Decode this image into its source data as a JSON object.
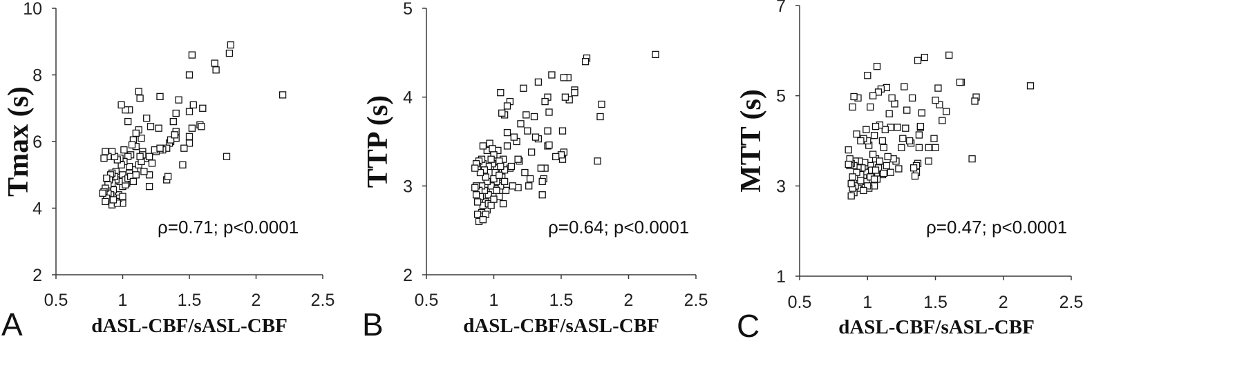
{
  "colors": {
    "background": "#ffffff",
    "marker_stroke": "#111111",
    "axis": "#3a3a3a"
  },
  "chart_data": [
    {
      "type": "scatter",
      "panel_label": "A",
      "xlabel": "dASL-CBF/sASL-CBF",
      "ylabel": "Tmax (s)",
      "xlim": [
        0.5,
        2.5
      ],
      "ylim": [
        2,
        10
      ],
      "xticks": [
        "0.5",
        "1",
        "1.5",
        "2",
        "2.5"
      ],
      "yticks": [
        "2",
        "4",
        "6",
        "8",
        "10"
      ],
      "annotation": "ρ=0.71; p<0.0001",
      "grid": false,
      "points": [
        [
          1.81,
          8.9
        ],
        [
          1.8,
          8.65
        ],
        [
          1.69,
          8.35
        ],
        [
          1.7,
          8.15
        ],
        [
          1.52,
          8.6
        ],
        [
          1.5,
          8.0
        ],
        [
          2.2,
          7.4
        ],
        [
          1.78,
          5.55
        ],
        [
          1.53,
          7.1
        ],
        [
          1.6,
          7.0
        ],
        [
          1.58,
          6.5
        ],
        [
          1.59,
          6.45
        ],
        [
          1.5,
          6.9
        ],
        [
          1.5,
          6.15
        ],
        [
          1.5,
          5.95
        ],
        [
          1.45,
          5.3
        ],
        [
          1.42,
          7.25
        ],
        [
          1.4,
          6.85
        ],
        [
          1.38,
          6.6
        ],
        [
          1.4,
          6.3
        ],
        [
          1.4,
          6.1
        ],
        [
          1.36,
          6.0
        ],
        [
          1.35,
          5.95
        ],
        [
          1.33,
          5.8
        ],
        [
          1.33,
          4.85
        ],
        [
          1.34,
          4.95
        ],
        [
          1.3,
          5.75
        ],
        [
          1.28,
          7.35
        ],
        [
          1.27,
          6.4
        ],
        [
          1.28,
          5.75
        ],
        [
          1.25,
          5.7
        ],
        [
          1.22,
          5.35
        ],
        [
          1.21,
          6.45
        ],
        [
          1.2,
          5.0
        ],
        [
          1.2,
          4.65
        ],
        [
          1.18,
          6.7
        ],
        [
          1.17,
          5.5
        ],
        [
          1.15,
          5.7
        ],
        [
          1.15,
          5.6
        ],
        [
          1.14,
          6.1
        ],
        [
          1.13,
          7.3
        ],
        [
          1.12,
          7.5
        ],
        [
          1.12,
          6.35
        ],
        [
          1.1,
          6.25
        ],
        [
          1.1,
          5.85
        ],
        [
          1.09,
          5.15
        ],
        [
          1.08,
          6.05
        ],
        [
          1.07,
          5.9
        ],
        [
          1.06,
          5.6
        ],
        [
          1.05,
          5.25
        ],
        [
          1.05,
          5.05
        ],
        [
          1.05,
          6.95
        ],
        [
          1.04,
          6.6
        ],
        [
          1.04,
          5.55
        ],
        [
          1.03,
          4.85
        ],
        [
          1.03,
          4.75
        ],
        [
          1.02,
          6.95
        ],
        [
          1.01,
          5.75
        ],
        [
          1.01,
          5.4
        ],
        [
          1.0,
          5.0
        ],
        [
          1.0,
          4.8
        ],
        [
          1.0,
          4.65
        ],
        [
          1.0,
          4.15
        ],
        [
          0.99,
          7.1
        ],
        [
          0.99,
          5.3
        ],
        [
          0.98,
          5.5
        ],
        [
          0.98,
          4.8
        ],
        [
          0.97,
          4.4
        ],
        [
          0.97,
          4.3
        ],
        [
          0.96,
          5.45
        ],
        [
          0.95,
          5.1
        ],
        [
          0.95,
          4.85
        ],
        [
          0.95,
          4.2
        ],
        [
          0.94,
          5.55
        ],
        [
          0.94,
          4.95
        ],
        [
          0.93,
          4.55
        ],
        [
          0.93,
          4.3
        ],
        [
          0.92,
          5.7
        ],
        [
          0.92,
          5.05
        ],
        [
          0.92,
          4.75
        ],
        [
          0.92,
          4.1
        ],
        [
          0.91,
          5.0
        ],
        [
          0.91,
          4.4
        ],
        [
          0.9,
          4.85
        ],
        [
          0.9,
          4.25
        ],
        [
          0.89,
          5.55
        ],
        [
          0.89,
          4.7
        ],
        [
          0.89,
          4.45
        ],
        [
          0.88,
          4.9
        ],
        [
          0.88,
          4.3
        ],
        [
          0.87,
          5.7
        ],
        [
          0.87,
          4.6
        ],
        [
          0.87,
          4.2
        ],
        [
          0.86,
          5.5
        ],
        [
          0.86,
          4.5
        ],
        [
          0.85,
          4.45
        ],
        [
          1.02,
          4.7
        ],
        [
          1.02,
          4.85
        ],
        [
          1.04,
          4.9
        ],
        [
          1.06,
          4.95
        ],
        [
          1.1,
          5.0
        ],
        [
          1.12,
          5.3
        ],
        [
          1.14,
          5.4
        ],
        [
          1.16,
          5.1
        ],
        [
          1.08,
          4.8
        ],
        [
          1.0,
          4.35
        ],
        [
          0.96,
          4.15
        ],
        [
          0.93,
          4.25
        ],
        [
          1.2,
          5.55
        ],
        [
          1.24,
          5.75
        ],
        [
          1.13,
          5.55
        ],
        [
          1.28,
          5.8
        ],
        [
          1.36,
          6.05
        ],
        [
          1.39,
          6.2
        ],
        [
          1.46,
          5.8
        ],
        [
          1.52,
          6.4
        ]
      ]
    },
    {
      "type": "scatter",
      "panel_label": "B",
      "xlabel": "dASL-CBF/sASL-CBF",
      "ylabel": "TTP (s)",
      "xlim": [
        0.5,
        2.5
      ],
      "ylim": [
        2,
        5
      ],
      "xticks": [
        "0.5",
        "1",
        "1.5",
        "2",
        "2.5"
      ],
      "yticks": [
        "2",
        "3",
        "4",
        "5"
      ],
      "annotation": "ρ=0.64; p<0.0001",
      "grid": false,
      "points": [
        [
          2.2,
          4.48
        ],
        [
          1.69,
          4.44
        ],
        [
          1.68,
          4.4
        ],
        [
          1.8,
          3.92
        ],
        [
          1.79,
          3.78
        ],
        [
          1.77,
          3.28
        ],
        [
          1.6,
          4.08
        ],
        [
          1.6,
          4.05
        ],
        [
          1.55,
          4.22
        ],
        [
          1.52,
          4.22
        ],
        [
          1.56,
          3.97
        ],
        [
          1.53,
          4.0
        ],
        [
          1.51,
          3.62
        ],
        [
          1.52,
          3.38
        ],
        [
          1.51,
          3.3
        ],
        [
          1.5,
          3.35
        ],
        [
          1.46,
          3.33
        ],
        [
          1.43,
          4.25
        ],
        [
          1.41,
          3.83
        ],
        [
          1.4,
          4.0
        ],
        [
          1.38,
          3.95
        ],
        [
          1.4,
          3.62
        ],
        [
          1.4,
          3.45
        ],
        [
          1.41,
          3.46
        ],
        [
          1.38,
          3.2
        ],
        [
          1.37,
          3.08
        ],
        [
          1.36,
          3.05
        ],
        [
          1.36,
          2.9
        ],
        [
          1.35,
          3.2
        ],
        [
          1.33,
          3.53
        ],
        [
          1.33,
          4.17
        ],
        [
          1.31,
          3.55
        ],
        [
          1.3,
          3.78
        ],
        [
          1.28,
          3.38
        ],
        [
          1.27,
          3.08
        ],
        [
          1.26,
          3.0
        ],
        [
          1.25,
          3.62
        ],
        [
          1.24,
          3.8
        ],
        [
          1.23,
          3.15
        ],
        [
          1.22,
          4.1
        ],
        [
          1.2,
          3.7
        ],
        [
          1.19,
          3.28
        ],
        [
          1.18,
          3.3
        ],
        [
          1.18,
          2.98
        ],
        [
          1.17,
          3.5
        ],
        [
          1.15,
          3.55
        ],
        [
          1.14,
          3.0
        ],
        [
          1.12,
          3.95
        ],
        [
          1.12,
          3.2
        ],
        [
          1.1,
          3.9
        ],
        [
          1.1,
          3.6
        ],
        [
          1.1,
          3.45
        ],
        [
          1.09,
          2.95
        ],
        [
          1.08,
          3.8
        ],
        [
          1.08,
          3.18
        ],
        [
          1.07,
          3.3
        ],
        [
          1.07,
          2.8
        ],
        [
          1.06,
          3.82
        ],
        [
          1.06,
          3.1
        ],
        [
          1.05,
          4.05
        ],
        [
          1.05,
          3.0
        ],
        [
          1.04,
          3.28
        ],
        [
          1.04,
          2.88
        ],
        [
          1.03,
          3.4
        ],
        [
          1.02,
          3.2
        ],
        [
          1.02,
          3.05
        ],
        [
          1.01,
          3.15
        ],
        [
          1.01,
          2.97
        ],
        [
          1.0,
          3.35
        ],
        [
          1.0,
          3.08
        ],
        [
          0.99,
          3.25
        ],
        [
          0.99,
          2.95
        ],
        [
          0.98,
          3.3
        ],
        [
          0.98,
          3.0
        ],
        [
          0.97,
          2.85
        ],
        [
          0.96,
          3.22
        ],
        [
          0.96,
          2.9
        ],
        [
          0.95,
          3.4
        ],
        [
          0.95,
          3.05
        ],
        [
          0.95,
          2.73
        ],
        [
          0.94,
          3.1
        ],
        [
          0.94,
          2.82
        ],
        [
          0.93,
          3.18
        ],
        [
          0.93,
          2.95
        ],
        [
          0.92,
          3.45
        ],
        [
          0.92,
          3.25
        ],
        [
          0.92,
          2.78
        ],
        [
          0.91,
          3.3
        ],
        [
          0.91,
          3.0
        ],
        [
          0.91,
          2.7
        ],
        [
          0.9,
          3.15
        ],
        [
          0.9,
          2.88
        ],
        [
          0.9,
          2.66
        ],
        [
          0.89,
          3.28
        ],
        [
          0.89,
          2.95
        ],
        [
          0.89,
          2.6
        ],
        [
          0.88,
          3.22
        ],
        [
          0.88,
          2.82
        ],
        [
          0.88,
          2.68
        ],
        [
          0.87,
          3.25
        ],
        [
          0.87,
          3.0
        ],
        [
          0.87,
          2.9
        ],
        [
          0.86,
          3.2
        ],
        [
          0.86,
          2.98
        ],
        [
          0.96,
          2.8
        ],
        [
          0.98,
          2.78
        ],
        [
          1.0,
          2.85
        ],
        [
          1.02,
          2.95
        ],
        [
          1.04,
          3.12
        ],
        [
          0.94,
          2.68
        ],
        [
          0.92,
          2.62
        ],
        [
          0.97,
          3.48
        ],
        [
          0.99,
          3.42
        ],
        [
          1.05,
          3.22
        ],
        [
          1.08,
          3.05
        ],
        [
          1.13,
          3.22
        ]
      ]
    },
    {
      "type": "scatter",
      "panel_label": "C",
      "xlabel": "dASL-CBF/sASL-CBF",
      "ylabel": "MTT (s)",
      "xlim": [
        0.5,
        2.5
      ],
      "ylim": [
        1,
        7
      ],
      "xticks": [
        "0.5",
        "1",
        "1.5",
        "2",
        "2.5"
      ],
      "yticks": [
        "1",
        "3",
        "5",
        "7"
      ],
      "annotation": "ρ=0.47; p<0.0001",
      "grid": false,
      "points": [
        [
          2.2,
          5.22
        ],
        [
          1.8,
          4.97
        ],
        [
          1.79,
          4.88
        ],
        [
          1.77,
          3.6
        ],
        [
          1.69,
          5.3
        ],
        [
          1.68,
          5.3
        ],
        [
          1.6,
          5.9
        ],
        [
          1.58,
          4.65
        ],
        [
          1.55,
          4.45
        ],
        [
          1.53,
          4.8
        ],
        [
          1.52,
          5.17
        ],
        [
          1.5,
          4.9
        ],
        [
          1.5,
          3.85
        ],
        [
          1.49,
          4.05
        ],
        [
          1.45,
          3.55
        ],
        [
          1.45,
          3.85
        ],
        [
          1.42,
          5.85
        ],
        [
          1.4,
          4.62
        ],
        [
          1.39,
          4.3
        ],
        [
          1.39,
          4.32
        ],
        [
          1.38,
          4.13
        ],
        [
          1.38,
          3.85
        ],
        [
          1.37,
          3.5
        ],
        [
          1.36,
          3.45
        ],
        [
          1.36,
          3.3
        ],
        [
          1.35,
          3.22
        ],
        [
          1.34,
          3.4
        ],
        [
          1.37,
          5.78
        ],
        [
          1.33,
          4.95
        ],
        [
          1.32,
          3.95
        ],
        [
          1.31,
          4.0
        ],
        [
          1.29,
          4.68
        ],
        [
          1.28,
          4.28
        ],
        [
          1.27,
          5.2
        ],
        [
          1.26,
          4.05
        ],
        [
          1.25,
          3.85
        ],
        [
          1.23,
          3.38
        ],
        [
          1.22,
          4.3
        ],
        [
          1.21,
          3.55
        ],
        [
          1.2,
          4.82
        ],
        [
          1.19,
          3.6
        ],
        [
          1.18,
          4.95
        ],
        [
          1.17,
          4.3
        ],
        [
          1.17,
          3.3
        ],
        [
          1.16,
          4.6
        ],
        [
          1.15,
          3.65
        ],
        [
          1.14,
          3.45
        ],
        [
          1.14,
          5.18
        ],
        [
          1.13,
          4.25
        ],
        [
          1.12,
          3.85
        ],
        [
          1.11,
          4.0
        ],
        [
          1.11,
          3.25
        ],
        [
          1.1,
          5.15
        ],
        [
          1.09,
          4.35
        ],
        [
          1.08,
          5.08
        ],
        [
          1.08,
          3.4
        ],
        [
          1.07,
          5.65
        ],
        [
          1.07,
          3.15
        ],
        [
          1.06,
          4.32
        ],
        [
          1.06,
          3.6
        ],
        [
          1.05,
          4.12
        ],
        [
          1.05,
          3.0
        ],
        [
          1.04,
          5.0
        ],
        [
          1.04,
          3.7
        ],
        [
          1.03,
          3.25
        ],
        [
          1.02,
          4.75
        ],
        [
          1.02,
          3.45
        ],
        [
          1.01,
          3.9
        ],
        [
          1.01,
          2.95
        ],
        [
          1.0,
          5.45
        ],
        [
          1.0,
          4.0
        ],
        [
          0.99,
          4.25
        ],
        [
          0.99,
          3.3
        ],
        [
          0.98,
          3.52
        ],
        [
          0.98,
          3.05
        ],
        [
          0.97,
          4.05
        ],
        [
          0.97,
          3.18
        ],
        [
          0.96,
          3.4
        ],
        [
          0.96,
          2.98
        ],
        [
          0.95,
          4.0
        ],
        [
          0.95,
          3.25
        ],
        [
          0.94,
          3.55
        ],
        [
          0.94,
          3.05
        ],
        [
          0.93,
          4.95
        ],
        [
          0.93,
          3.4
        ],
        [
          0.93,
          2.95
        ],
        [
          0.92,
          4.15
        ],
        [
          0.92,
          3.3
        ],
        [
          0.91,
          3.55
        ],
        [
          0.91,
          3.0
        ],
        [
          0.9,
          4.98
        ],
        [
          0.9,
          3.45
        ],
        [
          0.9,
          2.85
        ],
        [
          0.89,
          4.75
        ],
        [
          0.89,
          3.2
        ],
        [
          0.89,
          2.95
        ],
        [
          0.88,
          3.5
        ],
        [
          0.88,
          3.05
        ],
        [
          0.88,
          2.78
        ],
        [
          0.87,
          3.45
        ],
        [
          0.87,
          3.6
        ],
        [
          0.86,
          3.8
        ],
        [
          0.86,
          3.48
        ],
        [
          0.99,
          3.1
        ],
        [
          1.0,
          3.0
        ],
        [
          1.02,
          3.2
        ],
        [
          1.03,
          3.35
        ],
        [
          1.05,
          3.15
        ],
        [
          1.06,
          3.35
        ],
        [
          1.09,
          3.55
        ],
        [
          1.12,
          3.28
        ],
        [
          0.95,
          3.12
        ],
        [
          0.97,
          2.9
        ]
      ]
    }
  ]
}
